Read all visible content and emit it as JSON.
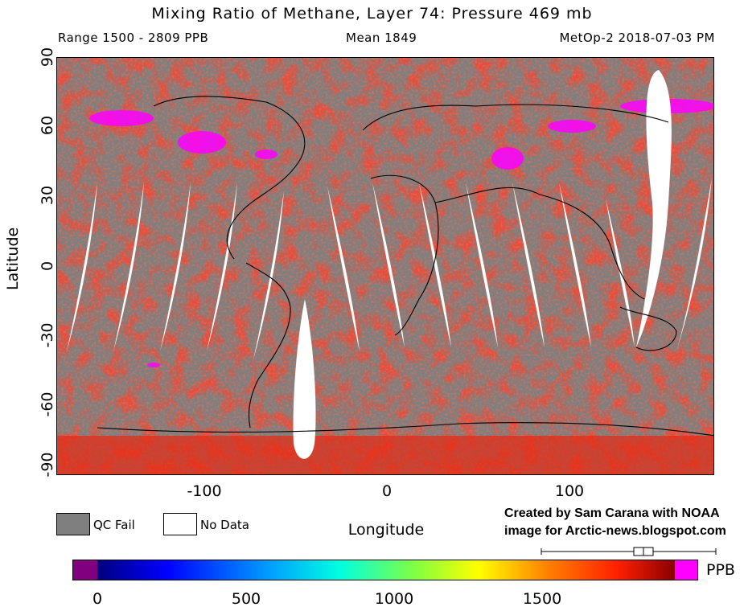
{
  "header": {
    "title": "Mixing Ratio of Methane, Layer 74: Pressure 469 mb",
    "range": "Range 1500 - 2809 PPB",
    "mean": "Mean 1849",
    "source": "MetOp-2 2018-07-03 PM"
  },
  "axes": {
    "y_title": "Latitude",
    "x_title": "Longitude",
    "y_ticks": [
      "90",
      "60",
      "30",
      "0",
      "-30",
      "-60",
      "-90"
    ],
    "x_ticks": [
      "-100",
      "0",
      "100"
    ]
  },
  "legend": {
    "qc_fail_label": "QC Fail",
    "no_data_label": "No Data",
    "qc_fail_color": "#7f7f7f",
    "no_data_color": "#ffffff"
  },
  "credit": {
    "line1": "Created by Sam Carana with NOAA",
    "line2": "image for Arctic-news.blogspot.com"
  },
  "colorbar": {
    "unit": "PPB",
    "ticks": [
      "0",
      "500",
      "1000",
      "1500"
    ],
    "low_color": "#800080",
    "high_color": "#ff00ff"
  },
  "map": {
    "background_color": "#7f7f7f",
    "field_color": "#d81a10",
    "high_color": "#ff00ff"
  }
}
